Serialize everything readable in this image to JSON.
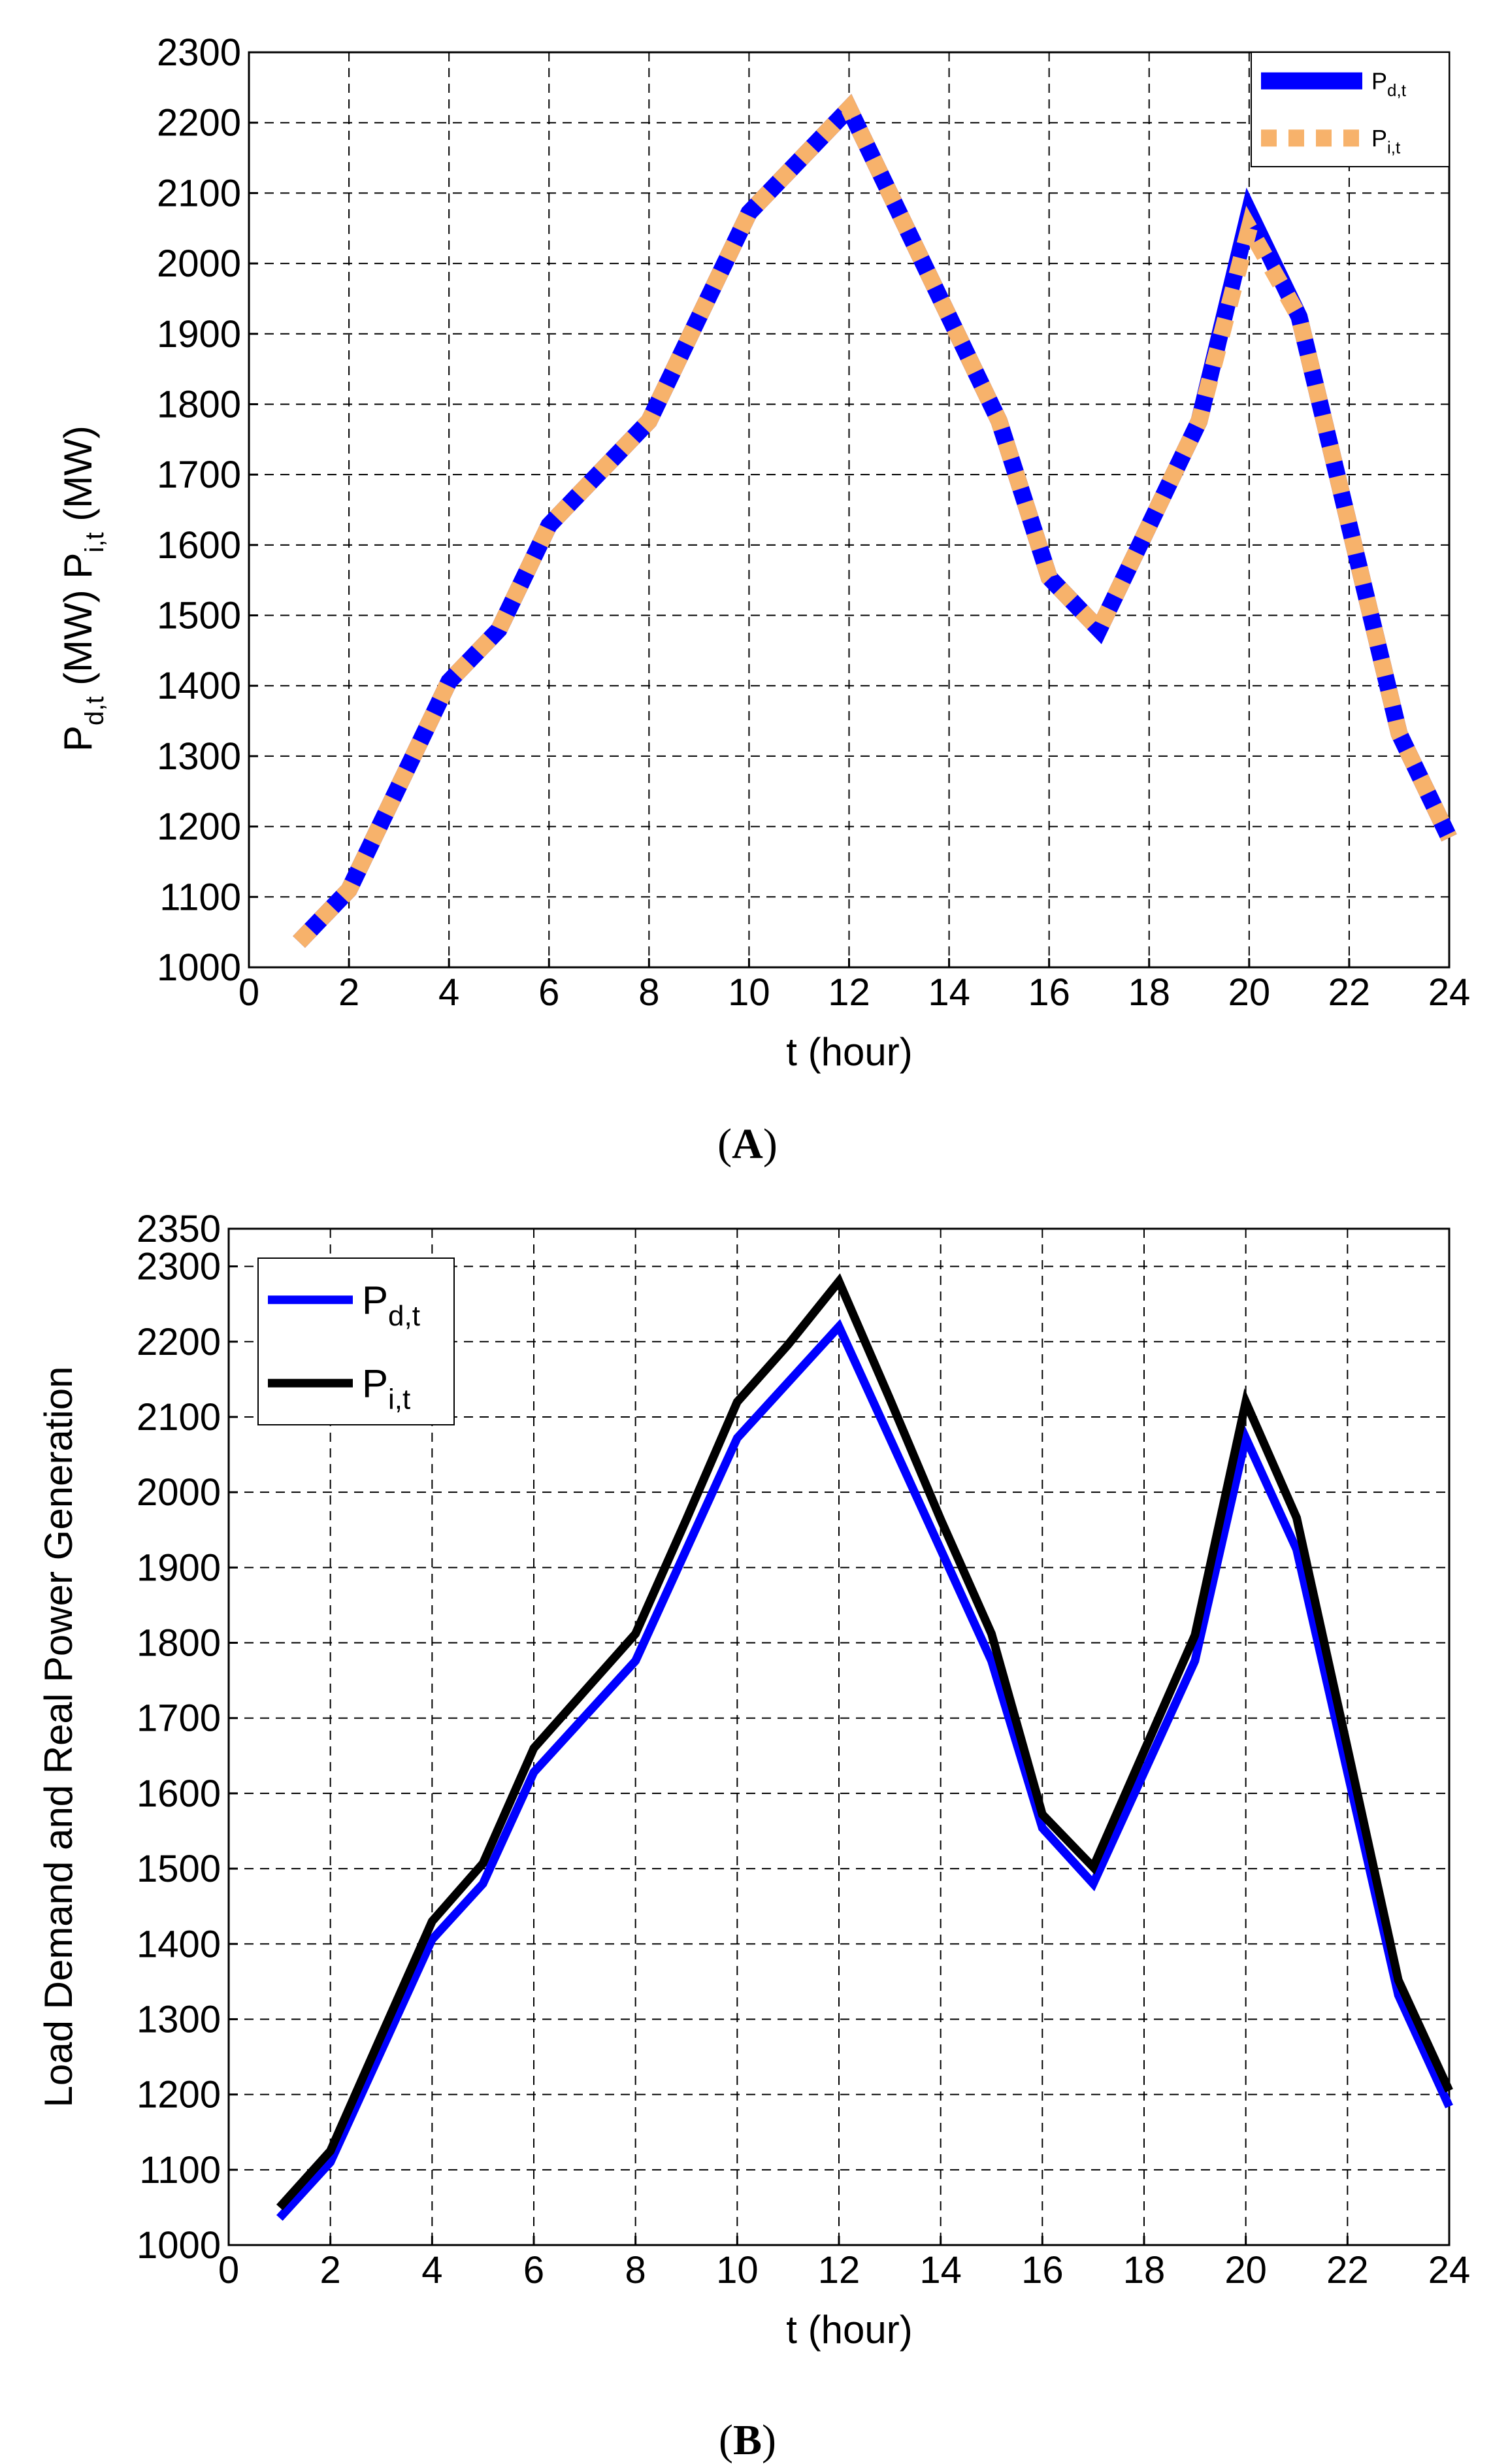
{
  "panels": [
    {
      "id": "A",
      "caption": "(A)",
      "chart_data": {
        "type": "line",
        "xlabel": "t (hour)",
        "ylabel_parts": [
          "P",
          "d,t",
          " (MW)",
          "P",
          "i,t",
          " (MW)"
        ],
        "xlim": [
          0,
          24
        ],
        "ylim": [
          1000,
          2300
        ],
        "xticks": [
          0,
          2,
          4,
          6,
          8,
          10,
          12,
          14,
          16,
          18,
          20,
          22,
          24
        ],
        "yticks": [
          1000,
          1100,
          1200,
          1300,
          1400,
          1500,
          1600,
          1700,
          1800,
          1900,
          2000,
          2100,
          2200,
          2300
        ],
        "grid": true,
        "legend_position": "top-right",
        "x": [
          1,
          2,
          3,
          4,
          5,
          6,
          7,
          8,
          9,
          10,
          11,
          12,
          13,
          14,
          15,
          16,
          17,
          18,
          19,
          20,
          21,
          22,
          23,
          24
        ],
        "series": [
          {
            "name": "P",
            "subscript": "d,t",
            "color": "#0000ff",
            "style": "solid",
            "values": [
              1036,
              1110,
              1258,
              1406,
              1480,
              1628,
              1702,
              1776,
              1924,
              2072,
              2146,
              2220,
              2072,
              1924,
              1776,
              1554,
              1480,
              1628,
              1776,
              2072,
              1924,
              1628,
              1332,
              1184
            ]
          },
          {
            "name": "P",
            "subscript": "i,t",
            "color": "#f7b26b",
            "style": "dashed",
            "values": [
              1036,
              1110,
              1258,
              1406,
              1480,
              1628,
              1702,
              1776,
              1924,
              2072,
              2146,
              2220,
              2072,
              1924,
              1776,
              1554,
              1480,
              1628,
              1776,
              2050,
              1924,
              1628,
              1332,
              1184
            ]
          }
        ]
      }
    },
    {
      "id": "B",
      "caption": "(B)",
      "chart_data": {
        "type": "line",
        "xlabel": "t   (hour)",
        "ylabel": "Load Demand and Real Power Generation",
        "xlim": [
          0,
          24
        ],
        "ylim": [
          1000,
          2350
        ],
        "xticks": [
          0,
          2,
          4,
          6,
          8,
          10,
          12,
          14,
          16,
          18,
          20,
          22,
          24
        ],
        "yticks": [
          1000,
          1100,
          1200,
          1300,
          1400,
          1500,
          1600,
          1700,
          1800,
          1900,
          2000,
          2100,
          2200,
          2300,
          2350
        ],
        "grid": true,
        "legend_position": "top-left",
        "x": [
          1,
          2,
          3,
          4,
          5,
          6,
          7,
          8,
          9,
          10,
          11,
          12,
          13,
          14,
          15,
          16,
          17,
          18,
          19,
          20,
          21,
          22,
          23,
          24
        ],
        "series": [
          {
            "name": "P",
            "subscript": "d,t",
            "color": "#0000ff",
            "style": "solid",
            "values": [
              1036,
              1110,
              1258,
              1406,
              1480,
              1628,
              1702,
              1776,
              1924,
              2072,
              2146,
              2220,
              2072,
              1924,
              1776,
              1554,
              1480,
              1628,
              1776,
              2072,
              1924,
              1628,
              1332,
              1184
            ]
          },
          {
            "name": "P",
            "subscript": "i,t",
            "color": "#000000",
            "style": "solid",
            "values": [
              1050,
              1125,
              1278,
              1430,
              1507,
              1660,
              1736,
              1812,
              1964,
              2120,
              2196,
              2280,
              2124,
              1964,
              1812,
              1572,
              1502,
              1656,
              1810,
              2120,
              1966,
              1660,
              1352,
              1205
            ]
          }
        ]
      }
    }
  ]
}
